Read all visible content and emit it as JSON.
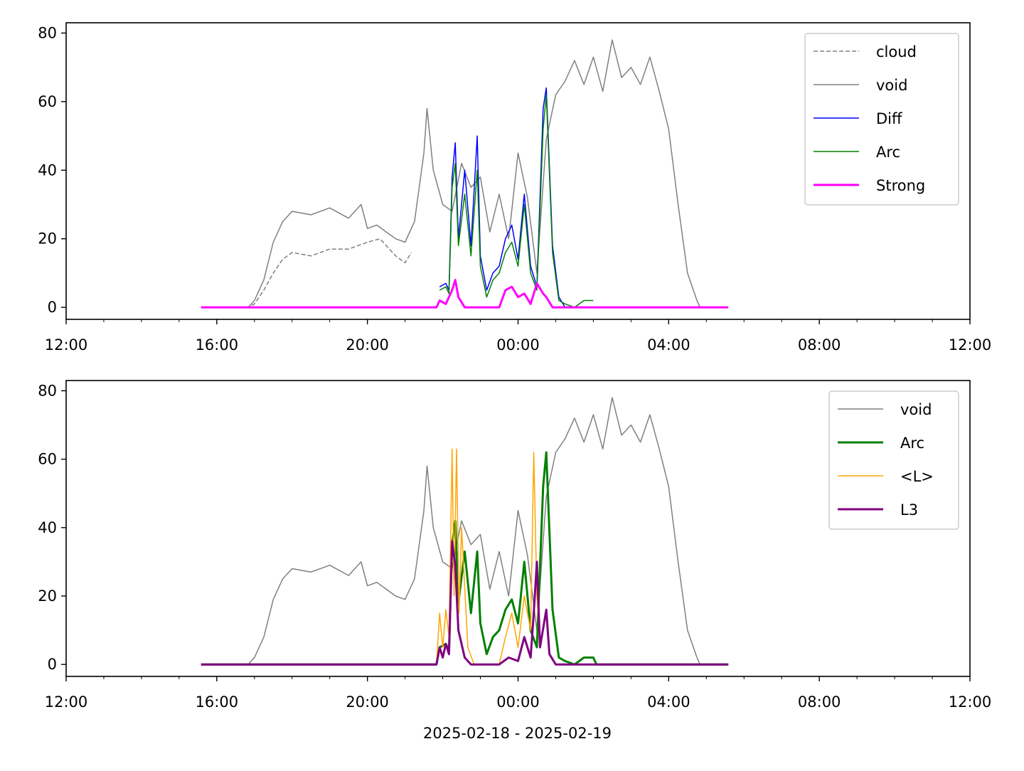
{
  "chart_data": [
    {
      "type": "line",
      "title": "",
      "xlabel": "",
      "ylabel": "",
      "xlim": [
        "2025-02-18T12:00",
        "2025-02-19T12:00"
      ],
      "ylim": [
        -3.5,
        83
      ],
      "yticks": [
        0,
        20,
        40,
        60,
        80
      ],
      "ytick_labels": [
        "0",
        "20",
        "40",
        "60",
        "80"
      ],
      "xticks_major": [
        "2025-02-18T12:00",
        "2025-02-18T16:00",
        "2025-02-18T20:00",
        "2025-02-19T00:00",
        "2025-02-19T04:00",
        "2025-02-19T08:00",
        "2025-02-19T12:00"
      ],
      "xtick_labels": [
        "12:00",
        "16:00",
        "20:00",
        "00:00",
        "04:00",
        "08:00",
        "12:00"
      ],
      "xticks_minor": [
        "2025-02-18T13:00",
        "2025-02-18T14:00",
        "2025-02-18T15:00",
        "2025-02-18T17:00",
        "2025-02-18T18:00",
        "2025-02-18T19:00",
        "2025-02-18T21:00",
        "2025-02-18T22:00",
        "2025-02-18T23:00",
        "2025-02-19T01:00",
        "2025-02-19T02:00",
        "2025-02-19T03:00",
        "2025-02-19T05:00",
        "2025-02-19T06:00",
        "2025-02-19T07:00",
        "2025-02-19T09:00",
        "2025-02-19T10:00",
        "2025-02-19T11:00"
      ],
      "legend_position": "upper right",
      "grid": false,
      "series": [
        {
          "name": "cloud",
          "color": "#808080",
          "style": "dashed",
          "width": 1.5,
          "x": [
            "2025-02-18T15:35",
            "2025-02-18T16:50",
            "2025-02-18T17:00",
            "2025-02-18T17:15",
            "2025-02-18T17:30",
            "2025-02-18T17:45",
            "2025-02-18T18:00",
            "2025-02-18T18:30",
            "2025-02-18T19:00",
            "2025-02-18T19:30",
            "2025-02-18T20:00",
            "2025-02-18T20:20",
            "2025-02-18T20:45",
            "2025-02-18T21:00",
            "2025-02-18T21:10"
          ],
          "y": [
            0,
            0,
            1,
            5,
            10,
            14,
            16,
            15,
            17,
            17,
            19,
            20,
            15,
            13,
            16
          ]
        },
        {
          "name": "void",
          "color": "#808080",
          "style": "solid",
          "width": 1.5,
          "x": [
            "2025-02-18T15:35",
            "2025-02-18T16:50",
            "2025-02-18T17:00",
            "2025-02-18T17:15",
            "2025-02-18T17:30",
            "2025-02-18T17:45",
            "2025-02-18T18:00",
            "2025-02-18T18:30",
            "2025-02-18T19:00",
            "2025-02-18T19:30",
            "2025-02-18T19:50",
            "2025-02-18T20:00",
            "2025-02-18T20:15",
            "2025-02-18T20:30",
            "2025-02-18T20:45",
            "2025-02-18T21:00",
            "2025-02-18T21:15",
            "2025-02-18T21:30",
            "2025-02-18T21:35",
            "2025-02-18T21:45",
            "2025-02-18T22:00",
            "2025-02-18T22:15",
            "2025-02-18T22:30",
            "2025-02-18T22:45",
            "2025-02-18T23:00",
            "2025-02-18T23:15",
            "2025-02-18T23:30",
            "2025-02-18T23:45",
            "2025-02-19T00:00",
            "2025-02-19T00:15",
            "2025-02-19T00:30",
            "2025-02-19T00:45",
            "2025-02-19T01:00",
            "2025-02-19T01:15",
            "2025-02-19T01:30",
            "2025-02-19T01:45",
            "2025-02-19T02:00",
            "2025-02-19T02:15",
            "2025-02-19T02:30",
            "2025-02-19T02:45",
            "2025-02-19T03:00",
            "2025-02-19T03:15",
            "2025-02-19T03:30",
            "2025-02-19T03:45",
            "2025-02-19T04:00",
            "2025-02-19T04:15",
            "2025-02-19T04:30",
            "2025-02-19T04:45",
            "2025-02-19T04:50"
          ],
          "y": [
            0,
            0,
            2,
            8,
            19,
            25,
            28,
            27,
            29,
            26,
            30,
            23,
            24,
            22,
            20,
            19,
            25,
            45,
            58,
            40,
            30,
            28,
            42,
            35,
            38,
            22,
            33,
            20,
            45,
            32,
            10,
            49,
            62,
            66,
            72,
            65,
            73,
            63,
            78,
            67,
            70,
            65,
            73,
            63,
            52,
            30,
            10,
            2,
            0
          ]
        },
        {
          "name": "Diff",
          "color": "#0000ff",
          "style": "solid",
          "width": 1.5,
          "x": [
            "2025-02-18T21:55",
            "2025-02-18T22:05",
            "2025-02-18T22:10",
            "2025-02-18T22:15",
            "2025-02-18T22:20",
            "2025-02-18T22:25",
            "2025-02-18T22:35",
            "2025-02-18T22:45",
            "2025-02-18T22:55",
            "2025-02-18T23:00",
            "2025-02-18T23:10",
            "2025-02-18T23:20",
            "2025-02-18T23:30",
            "2025-02-18T23:40",
            "2025-02-18T23:50",
            "2025-02-19T00:00",
            "2025-02-19T00:10",
            "2025-02-19T00:20",
            "2025-02-19T00:30",
            "2025-02-19T00:40",
            "2025-02-19T00:45",
            "2025-02-19T00:55",
            "2025-02-19T01:05",
            "2025-02-19T01:15"
          ],
          "y": [
            6,
            7,
            5,
            38,
            48,
            20,
            40,
            18,
            50,
            15,
            5,
            10,
            12,
            20,
            24,
            14,
            33,
            12,
            6,
            58,
            64,
            18,
            3,
            0
          ]
        },
        {
          "name": "Arc",
          "color": "#008000",
          "style": "solid",
          "width": 1.5,
          "x": [
            "2025-02-18T21:55",
            "2025-02-18T22:05",
            "2025-02-18T22:10",
            "2025-02-18T22:15",
            "2025-02-18T22:20",
            "2025-02-18T22:25",
            "2025-02-18T22:35",
            "2025-02-18T22:45",
            "2025-02-18T22:55",
            "2025-02-18T23:00",
            "2025-02-18T23:10",
            "2025-02-18T23:20",
            "2025-02-18T23:30",
            "2025-02-18T23:40",
            "2025-02-18T23:50",
            "2025-02-19T00:00",
            "2025-02-19T00:10",
            "2025-02-19T00:20",
            "2025-02-19T00:30",
            "2025-02-19T00:40",
            "2025-02-19T00:45",
            "2025-02-19T00:55",
            "2025-02-19T01:05",
            "2025-02-19T01:15",
            "2025-02-19T01:30",
            "2025-02-19T01:45",
            "2025-02-19T02:00"
          ],
          "y": [
            5,
            6,
            4,
            35,
            42,
            18,
            33,
            15,
            40,
            12,
            3,
            8,
            10,
            16,
            19,
            12,
            30,
            10,
            5,
            52,
            62,
            16,
            2,
            1,
            0,
            2,
            2
          ]
        },
        {
          "name": "Strong",
          "color": "#ff00ff",
          "style": "solid",
          "width": 3,
          "x": [
            "2025-02-18T15:35",
            "2025-02-18T21:50",
            "2025-02-18T21:55",
            "2025-02-18T22:05",
            "2025-02-18T22:15",
            "2025-02-18T22:20",
            "2025-02-18T22:25",
            "2025-02-18T22:35",
            "2025-02-18T22:45",
            "2025-02-18T23:30",
            "2025-02-18T23:40",
            "2025-02-18T23:50",
            "2025-02-19T00:00",
            "2025-02-19T00:10",
            "2025-02-19T00:20",
            "2025-02-19T00:30",
            "2025-02-19T00:40",
            "2025-02-19T00:45",
            "2025-02-19T00:55",
            "2025-02-19T01:00",
            "2025-02-19T05:35"
          ],
          "y": [
            0,
            0,
            2,
            1,
            5,
            8,
            3,
            0,
            0,
            0,
            5,
            6,
            3,
            4,
            1,
            7,
            4,
            3,
            0,
            0,
            0
          ]
        }
      ]
    },
    {
      "type": "line",
      "title": "",
      "xlabel": "2025-02-18 - 2025-02-19",
      "ylabel": "",
      "xlim": [
        "2025-02-18T12:00",
        "2025-02-19T12:00"
      ],
      "ylim": [
        -3.5,
        83
      ],
      "yticks": [
        0,
        20,
        40,
        60,
        80
      ],
      "ytick_labels": [
        "0",
        "20",
        "40",
        "60",
        "80"
      ],
      "xticks_major": [
        "2025-02-18T12:00",
        "2025-02-18T16:00",
        "2025-02-18T20:00",
        "2025-02-19T00:00",
        "2025-02-19T04:00",
        "2025-02-19T08:00",
        "2025-02-19T12:00"
      ],
      "xtick_labels": [
        "12:00",
        "16:00",
        "20:00",
        "00:00",
        "04:00",
        "08:00",
        "12:00"
      ],
      "xticks_minor": [
        "2025-02-18T13:00",
        "2025-02-18T14:00",
        "2025-02-18T15:00",
        "2025-02-18T17:00",
        "2025-02-18T18:00",
        "2025-02-18T19:00",
        "2025-02-18T21:00",
        "2025-02-18T22:00",
        "2025-02-18T23:00",
        "2025-02-19T01:00",
        "2025-02-19T02:00",
        "2025-02-19T03:00",
        "2025-02-19T05:00",
        "2025-02-19T06:00",
        "2025-02-19T07:00",
        "2025-02-19T09:00",
        "2025-02-19T10:00",
        "2025-02-19T11:00"
      ],
      "legend_position": "upper right",
      "grid": false,
      "series": [
        {
          "name": "void",
          "color": "#808080",
          "style": "solid",
          "width": 1.5,
          "x": [
            "2025-02-18T15:35",
            "2025-02-18T16:50",
            "2025-02-18T17:00",
            "2025-02-18T17:15",
            "2025-02-18T17:30",
            "2025-02-18T17:45",
            "2025-02-18T18:00",
            "2025-02-18T18:30",
            "2025-02-18T19:00",
            "2025-02-18T19:30",
            "2025-02-18T19:50",
            "2025-02-18T20:00",
            "2025-02-18T20:15",
            "2025-02-18T20:30",
            "2025-02-18T20:45",
            "2025-02-18T21:00",
            "2025-02-18T21:15",
            "2025-02-18T21:30",
            "2025-02-18T21:35",
            "2025-02-18T21:45",
            "2025-02-18T22:00",
            "2025-02-18T22:15",
            "2025-02-18T22:30",
            "2025-02-18T22:45",
            "2025-02-18T23:00",
            "2025-02-18T23:15",
            "2025-02-18T23:30",
            "2025-02-18T23:45",
            "2025-02-19T00:00",
            "2025-02-19T00:15",
            "2025-02-19T00:30",
            "2025-02-19T00:45",
            "2025-02-19T01:00",
            "2025-02-19T01:15",
            "2025-02-19T01:30",
            "2025-02-19T01:45",
            "2025-02-19T02:00",
            "2025-02-19T02:15",
            "2025-02-19T02:30",
            "2025-02-19T02:45",
            "2025-02-19T03:00",
            "2025-02-19T03:15",
            "2025-02-19T03:30",
            "2025-02-19T03:45",
            "2025-02-19T04:00",
            "2025-02-19T04:15",
            "2025-02-19T04:30",
            "2025-02-19T04:45",
            "2025-02-19T04:50"
          ],
          "y": [
            0,
            0,
            2,
            8,
            19,
            25,
            28,
            27,
            29,
            26,
            30,
            23,
            24,
            22,
            20,
            19,
            25,
            45,
            58,
            40,
            30,
            28,
            42,
            35,
            38,
            22,
            33,
            20,
            45,
            32,
            10,
            49,
            62,
            66,
            72,
            65,
            73,
            63,
            78,
            67,
            70,
            65,
            73,
            63,
            52,
            30,
            10,
            2,
            0
          ]
        },
        {
          "name": "Arc",
          "color": "#008000",
          "style": "solid",
          "width": 3,
          "x": [
            "2025-02-18T15:35",
            "2025-02-18T21:50",
            "2025-02-18T21:55",
            "2025-02-18T22:05",
            "2025-02-18T22:10",
            "2025-02-18T22:15",
            "2025-02-18T22:20",
            "2025-02-18T22:25",
            "2025-02-18T22:35",
            "2025-02-18T22:45",
            "2025-02-18T22:55",
            "2025-02-18T23:00",
            "2025-02-18T23:10",
            "2025-02-18T23:20",
            "2025-02-18T23:30",
            "2025-02-18T23:40",
            "2025-02-18T23:50",
            "2025-02-19T00:00",
            "2025-02-19T00:10",
            "2025-02-19T00:20",
            "2025-02-19T00:30",
            "2025-02-19T00:40",
            "2025-02-19T00:45",
            "2025-02-19T00:55",
            "2025-02-19T01:05",
            "2025-02-19T01:15",
            "2025-02-19T01:30",
            "2025-02-19T01:45",
            "2025-02-19T02:00",
            "2025-02-19T02:05",
            "2025-02-19T05:35"
          ],
          "y": [
            0,
            0,
            5,
            6,
            4,
            35,
            42,
            18,
            33,
            15,
            33,
            12,
            3,
            8,
            10,
            16,
            19,
            12,
            30,
            10,
            5,
            52,
            62,
            16,
            2,
            1,
            0,
            2,
            2,
            0,
            0
          ]
        },
        {
          "name": "<L>",
          "color": "#ffa500",
          "style": "solid",
          "width": 1.5,
          "x": [
            "2025-02-18T15:35",
            "2025-02-18T21:50",
            "2025-02-18T21:55",
            "2025-02-18T22:00",
            "2025-02-18T22:05",
            "2025-02-18T22:10",
            "2025-02-18T22:15",
            "2025-02-18T22:18",
            "2025-02-18T22:22",
            "2025-02-18T22:26",
            "2025-02-18T22:30",
            "2025-02-18T22:40",
            "2025-02-18T22:50",
            "2025-02-18T23:30",
            "2025-02-18T23:40",
            "2025-02-18T23:50",
            "2025-02-19T00:00",
            "2025-02-19T00:10",
            "2025-02-19T00:20",
            "2025-02-19T00:25",
            "2025-02-19T00:30",
            "2025-02-19T00:35",
            "2025-02-19T00:45",
            "2025-02-19T00:50",
            "2025-02-19T01:00",
            "2025-02-19T05:35"
          ],
          "y": [
            0,
            0,
            15,
            5,
            16,
            8,
            63,
            20,
            63,
            15,
            40,
            5,
            0,
            0,
            8,
            15,
            5,
            20,
            10,
            62,
            20,
            5,
            15,
            3,
            0,
            0
          ]
        },
        {
          "name": "L3",
          "color": "#800080",
          "style": "solid",
          "width": 3,
          "x": [
            "2025-02-18T15:35",
            "2025-02-18T21:50",
            "2025-02-18T21:55",
            "2025-02-18T22:00",
            "2025-02-18T22:05",
            "2025-02-18T22:10",
            "2025-02-18T22:15",
            "2025-02-18T22:20",
            "2025-02-18T22:25",
            "2025-02-18T22:35",
            "2025-02-18T22:45",
            "2025-02-18T23:30",
            "2025-02-18T23:45",
            "2025-02-19T00:00",
            "2025-02-19T00:10",
            "2025-02-19T00:20",
            "2025-02-19T00:25",
            "2025-02-19T00:30",
            "2025-02-19T00:35",
            "2025-02-19T00:45",
            "2025-02-19T00:50",
            "2025-02-19T01:00",
            "2025-02-19T05:35"
          ],
          "y": [
            0,
            0,
            5,
            2,
            6,
            3,
            36,
            29,
            10,
            2,
            0,
            0,
            2,
            1,
            8,
            2,
            15,
            30,
            5,
            16,
            3,
            0,
            0
          ]
        }
      ]
    }
  ]
}
